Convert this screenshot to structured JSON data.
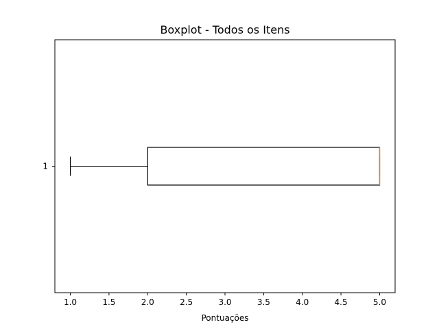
{
  "chart_data": {
    "type": "boxplot",
    "orientation": "horizontal",
    "title": "Boxplot - Todos os Itens",
    "xlabel": "Pontuações",
    "ylabel": "",
    "xlim": [
      0.8,
      5.2
    ],
    "x_ticks": [
      1.0,
      1.5,
      2.0,
      2.5,
      3.0,
      3.5,
      4.0,
      4.5,
      5.0
    ],
    "x_tick_labels": [
      "1.0",
      "1.5",
      "2.0",
      "2.5",
      "3.0",
      "3.5",
      "4.0",
      "4.5",
      "5.0"
    ],
    "categories": [
      "1"
    ],
    "boxes": [
      {
        "category": "1",
        "whisker_low": 1.0,
        "q1": 2.0,
        "median": 5.0,
        "q3": 5.0,
        "whisker_high": 5.0
      }
    ],
    "colors": {
      "box": "#000000",
      "median": "#ff7f0e"
    },
    "grid": false
  }
}
